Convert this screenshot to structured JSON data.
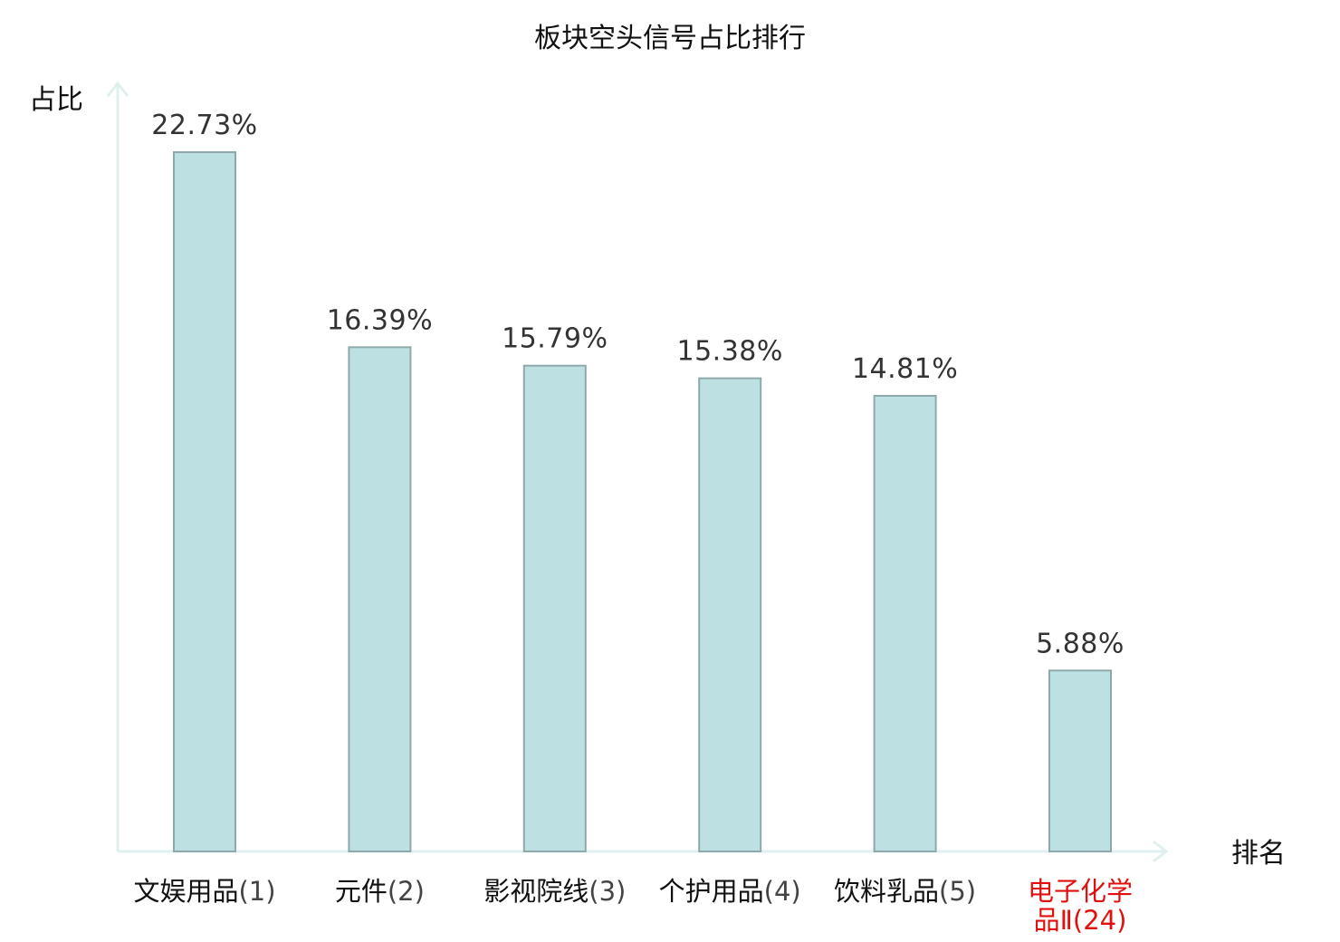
{
  "chart_data": {
    "type": "bar",
    "title": "板块空头信号占比排行",
    "ylabel": "占比",
    "xlabel": "排名",
    "ylim": [
      0,
      25
    ],
    "grid": false,
    "categories": [
      {
        "name": "文娱用品",
        "rank": "(1)",
        "lines": [
          "文娱用品(1)"
        ]
      },
      {
        "name": "元件",
        "rank": "(2)",
        "lines": [
          "元件(2)"
        ]
      },
      {
        "name": "影视院线",
        "rank": "(3)",
        "lines": [
          "影视院线(3)"
        ]
      },
      {
        "name": "个护用品",
        "rank": "(4)",
        "lines": [
          "个护用品(4)"
        ]
      },
      {
        "name": "饮料乳品",
        "rank": "(5)",
        "lines": [
          "饮料乳品(5)"
        ]
      },
      {
        "name": "电子化学品Ⅱ",
        "rank": "(24)",
        "lines": [
          "电子化学",
          "品Ⅱ(24)"
        ],
        "highlight": true
      }
    ],
    "values": [
      22.73,
      16.39,
      15.79,
      15.38,
      14.81,
      5.88
    ],
    "value_labels": [
      "22.73%",
      "16.39%",
      "15.79%",
      "15.38%",
      "14.81%",
      "5.88%"
    ],
    "colors": {
      "bar_fill": "#bde0e2",
      "bar_stroke": "#8fa9ab",
      "axis": "#dff0ee",
      "highlight_text": "#e01010"
    }
  }
}
